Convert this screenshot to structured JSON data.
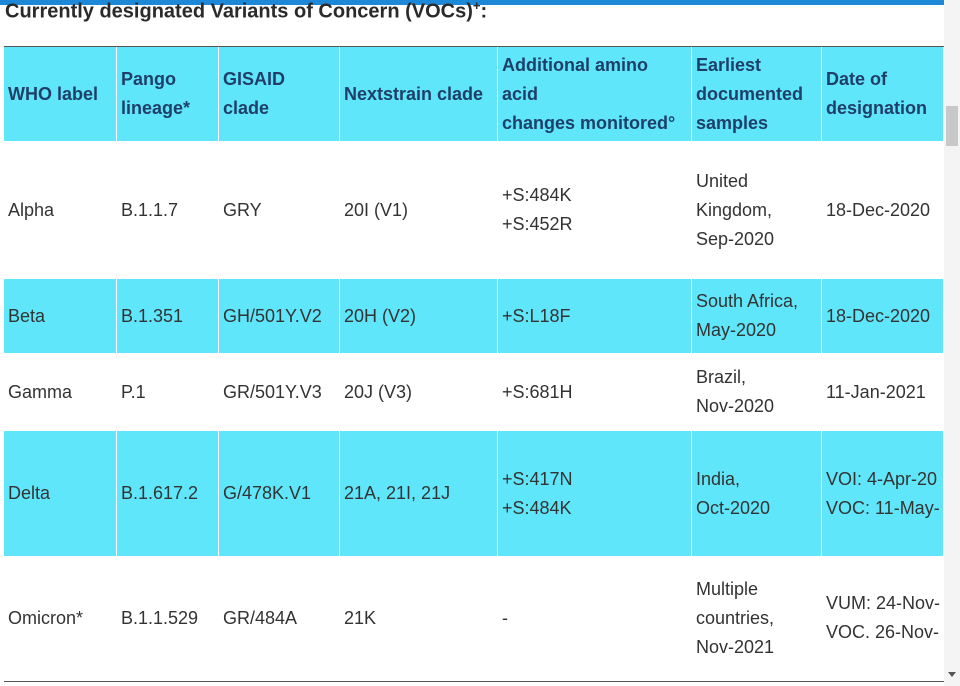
{
  "header": {
    "title": "Currently designated Variants of Concern (VOCs)",
    "title_mark": "+",
    "title_suffix": ":"
  },
  "table": {
    "columns": [
      [
        "WHO label"
      ],
      [
        "Pango",
        "lineage*"
      ],
      [
        "GISAID",
        "clade"
      ],
      [
        "Nextstrain clade"
      ],
      [
        "Additional amino",
        "acid",
        "changes monitored°"
      ],
      [
        "Earliest",
        "documented",
        "samples"
      ],
      [
        "Date of",
        "designation"
      ]
    ],
    "rows": [
      [
        [
          "Alpha"
        ],
        [
          "B.1.1.7"
        ],
        [
          "GRY"
        ],
        [
          "20I (V1)"
        ],
        [
          "+S:484K",
          "+S:452R"
        ],
        [
          "United",
          "Kingdom,",
          "Sep-2020"
        ],
        [
          "18-Dec-2020"
        ]
      ],
      [
        [
          "Beta"
        ],
        [
          "B.1.351"
        ],
        [
          "GH/501Y.V2"
        ],
        [
          "20H (V2)"
        ],
        [
          "+S:L18F"
        ],
        [
          "South Africa,",
          "May-2020"
        ],
        [
          "18-Dec-2020"
        ]
      ],
      [
        [
          "Gamma"
        ],
        [
          "P.1"
        ],
        [
          "GR/501Y.V3"
        ],
        [
          "20J (V3)"
        ],
        [
          "+S:681H"
        ],
        [
          "Brazil,",
          "Nov-2020"
        ],
        [
          "11-Jan-2021"
        ]
      ],
      [
        [
          "Delta"
        ],
        [
          "B.1.617.2"
        ],
        [
          "G/478K.V1"
        ],
        [
          "21A, 21I, 21J"
        ],
        [
          "+S:417N",
          "+S:484K"
        ],
        [
          "India,",
          "Oct-2020"
        ],
        [
          "VOI: 4-Apr-20",
          "VOC: 11-May-"
        ]
      ],
      [
        [
          "Omicron*"
        ],
        [
          "B.1.1.529"
        ],
        [
          "GR/484A"
        ],
        [
          "21K"
        ],
        [
          "-"
        ],
        [
          "Multiple",
          "countries,",
          "Nov-2021"
        ],
        [
          "VUM: 24-Nov-",
          "VOC. 26-Nov-"
        ]
      ]
    ]
  }
}
